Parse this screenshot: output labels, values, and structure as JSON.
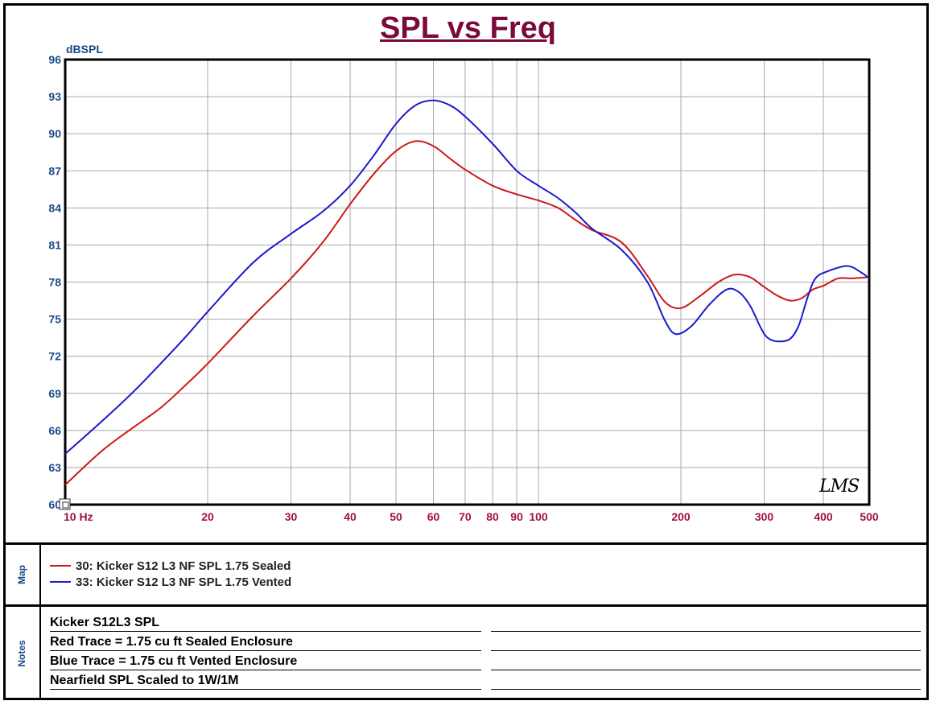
{
  "title": "SPL vs Freq",
  "logo_text": "LMS",
  "chart_data": {
    "type": "line",
    "title": "SPL vs Freq",
    "ylabel": "dBSPL",
    "xlabel": "",
    "x_scale": "log",
    "xlim": [
      10,
      500
    ],
    "ylim": [
      60,
      96
    ],
    "grid": true,
    "y_ticks": [
      60,
      63,
      66,
      69,
      72,
      75,
      78,
      81,
      84,
      87,
      90,
      93,
      96
    ],
    "x_ticks": [
      10,
      20,
      30,
      40,
      50,
      60,
      70,
      80,
      90,
      100,
      200,
      300,
      400,
      500
    ],
    "x_tick_labels": [
      "10 Hz",
      "20",
      "30",
      "40",
      "50",
      "60",
      "70",
      "80",
      "90",
      "100",
      "200",
      "300",
      "400",
      "500"
    ],
    "series": [
      {
        "name": "30: Kicker S12 L3 NF SPL 1.75 Sealed",
        "color": "#cc1a1a",
        "points": [
          [
            10,
            61.6
          ],
          [
            12,
            64.4
          ],
          [
            14,
            66.3
          ],
          [
            16,
            67.9
          ],
          [
            18,
            69.7
          ],
          [
            20,
            71.4
          ],
          [
            25,
            75.3
          ],
          [
            30,
            78.3
          ],
          [
            35,
            81.2
          ],
          [
            40,
            84.3
          ],
          [
            45,
            86.8
          ],
          [
            50,
            88.6
          ],
          [
            55,
            89.4
          ],
          [
            60,
            89.0
          ],
          [
            65,
            88.0
          ],
          [
            70,
            87.1
          ],
          [
            80,
            85.8
          ],
          [
            90,
            85.1
          ],
          [
            100,
            84.6
          ],
          [
            110,
            84.0
          ],
          [
            120,
            83.0
          ],
          [
            130,
            82.2
          ],
          [
            150,
            81.2
          ],
          [
            170,
            78.5
          ],
          [
            185,
            76.4
          ],
          [
            200,
            75.9
          ],
          [
            220,
            76.9
          ],
          [
            240,
            78.0
          ],
          [
            260,
            78.6
          ],
          [
            280,
            78.4
          ],
          [
            300,
            77.6
          ],
          [
            320,
            76.9
          ],
          [
            340,
            76.5
          ],
          [
            360,
            76.7
          ],
          [
            380,
            77.4
          ],
          [
            400,
            77.7
          ],
          [
            430,
            78.3
          ],
          [
            460,
            78.3
          ],
          [
            500,
            78.4
          ]
        ]
      },
      {
        "name": "33: Kicker S12 L3 NF SPL 1.75 Vented",
        "color": "#1a1acc",
        "points": [
          [
            10,
            64.1
          ],
          [
            12,
            66.8
          ],
          [
            14,
            69.2
          ],
          [
            16,
            71.5
          ],
          [
            18,
            73.6
          ],
          [
            20,
            75.6
          ],
          [
            25,
            79.6
          ],
          [
            30,
            81.9
          ],
          [
            35,
            83.7
          ],
          [
            40,
            85.8
          ],
          [
            45,
            88.3
          ],
          [
            50,
            90.8
          ],
          [
            55,
            92.3
          ],
          [
            60,
            92.7
          ],
          [
            65,
            92.3
          ],
          [
            70,
            91.4
          ],
          [
            80,
            89.2
          ],
          [
            90,
            87.0
          ],
          [
            100,
            85.8
          ],
          [
            110,
            84.8
          ],
          [
            120,
            83.6
          ],
          [
            130,
            82.3
          ],
          [
            150,
            80.6
          ],
          [
            170,
            78.0
          ],
          [
            185,
            74.9
          ],
          [
            195,
            73.8
          ],
          [
            210,
            74.4
          ],
          [
            230,
            76.2
          ],
          [
            250,
            77.4
          ],
          [
            265,
            77.2
          ],
          [
            280,
            76.1
          ],
          [
            295,
            74.3
          ],
          [
            305,
            73.5
          ],
          [
            320,
            73.2
          ],
          [
            340,
            73.4
          ],
          [
            355,
            74.5
          ],
          [
            370,
            76.7
          ],
          [
            385,
            78.3
          ],
          [
            410,
            78.9
          ],
          [
            450,
            79.3
          ],
          [
            480,
            78.8
          ],
          [
            500,
            78.3
          ]
        ]
      }
    ]
  },
  "legend": {
    "side_label": "Map",
    "items": [
      {
        "label": "30: Kicker S12 L3 NF SPL 1.75 Sealed",
        "color": "#cc1a1a"
      },
      {
        "label": "33: Kicker S12 L3 NF SPL 1.75 Vented",
        "color": "#1a1acc"
      }
    ]
  },
  "notes": {
    "side_label": "Notes",
    "lines": [
      "Kicker S12L3  SPL",
      "Red Trace = 1.75 cu ft Sealed Enclosure",
      "Blue Trace = 1.75 cu ft Vented Enclosure",
      "Nearfield SPL Scaled to 1W/1M"
    ]
  }
}
